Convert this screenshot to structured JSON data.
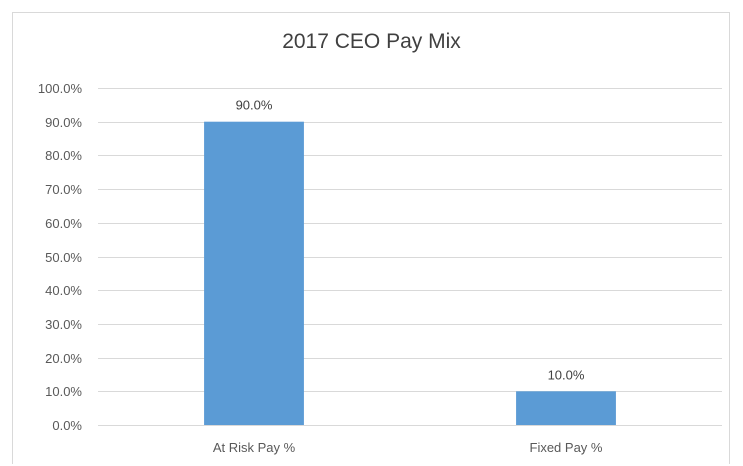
{
  "chart_data": {
    "type": "bar",
    "title": "2017 CEO Pay Mix",
    "categories": [
      "At Risk Pay %",
      "Fixed Pay %"
    ],
    "values": [
      90.0,
      10.0
    ],
    "data_labels": [
      "90.0%",
      "10.0%"
    ],
    "ylim": [
      0,
      100
    ],
    "yticks": [
      0,
      10,
      20,
      30,
      40,
      50,
      60,
      70,
      80,
      90,
      100
    ],
    "ytick_labels": [
      "0.0%",
      "10.0%",
      "20.0%",
      "30.0%",
      "40.0%",
      "50.0%",
      "60.0%",
      "70.0%",
      "80.0%",
      "90.0%",
      "100.0%"
    ],
    "xlabel": "",
    "ylabel": "",
    "grid": true,
    "legend": "none",
    "bar_color": "#5b9bd5",
    "grid_color": "#d9d9d9"
  }
}
